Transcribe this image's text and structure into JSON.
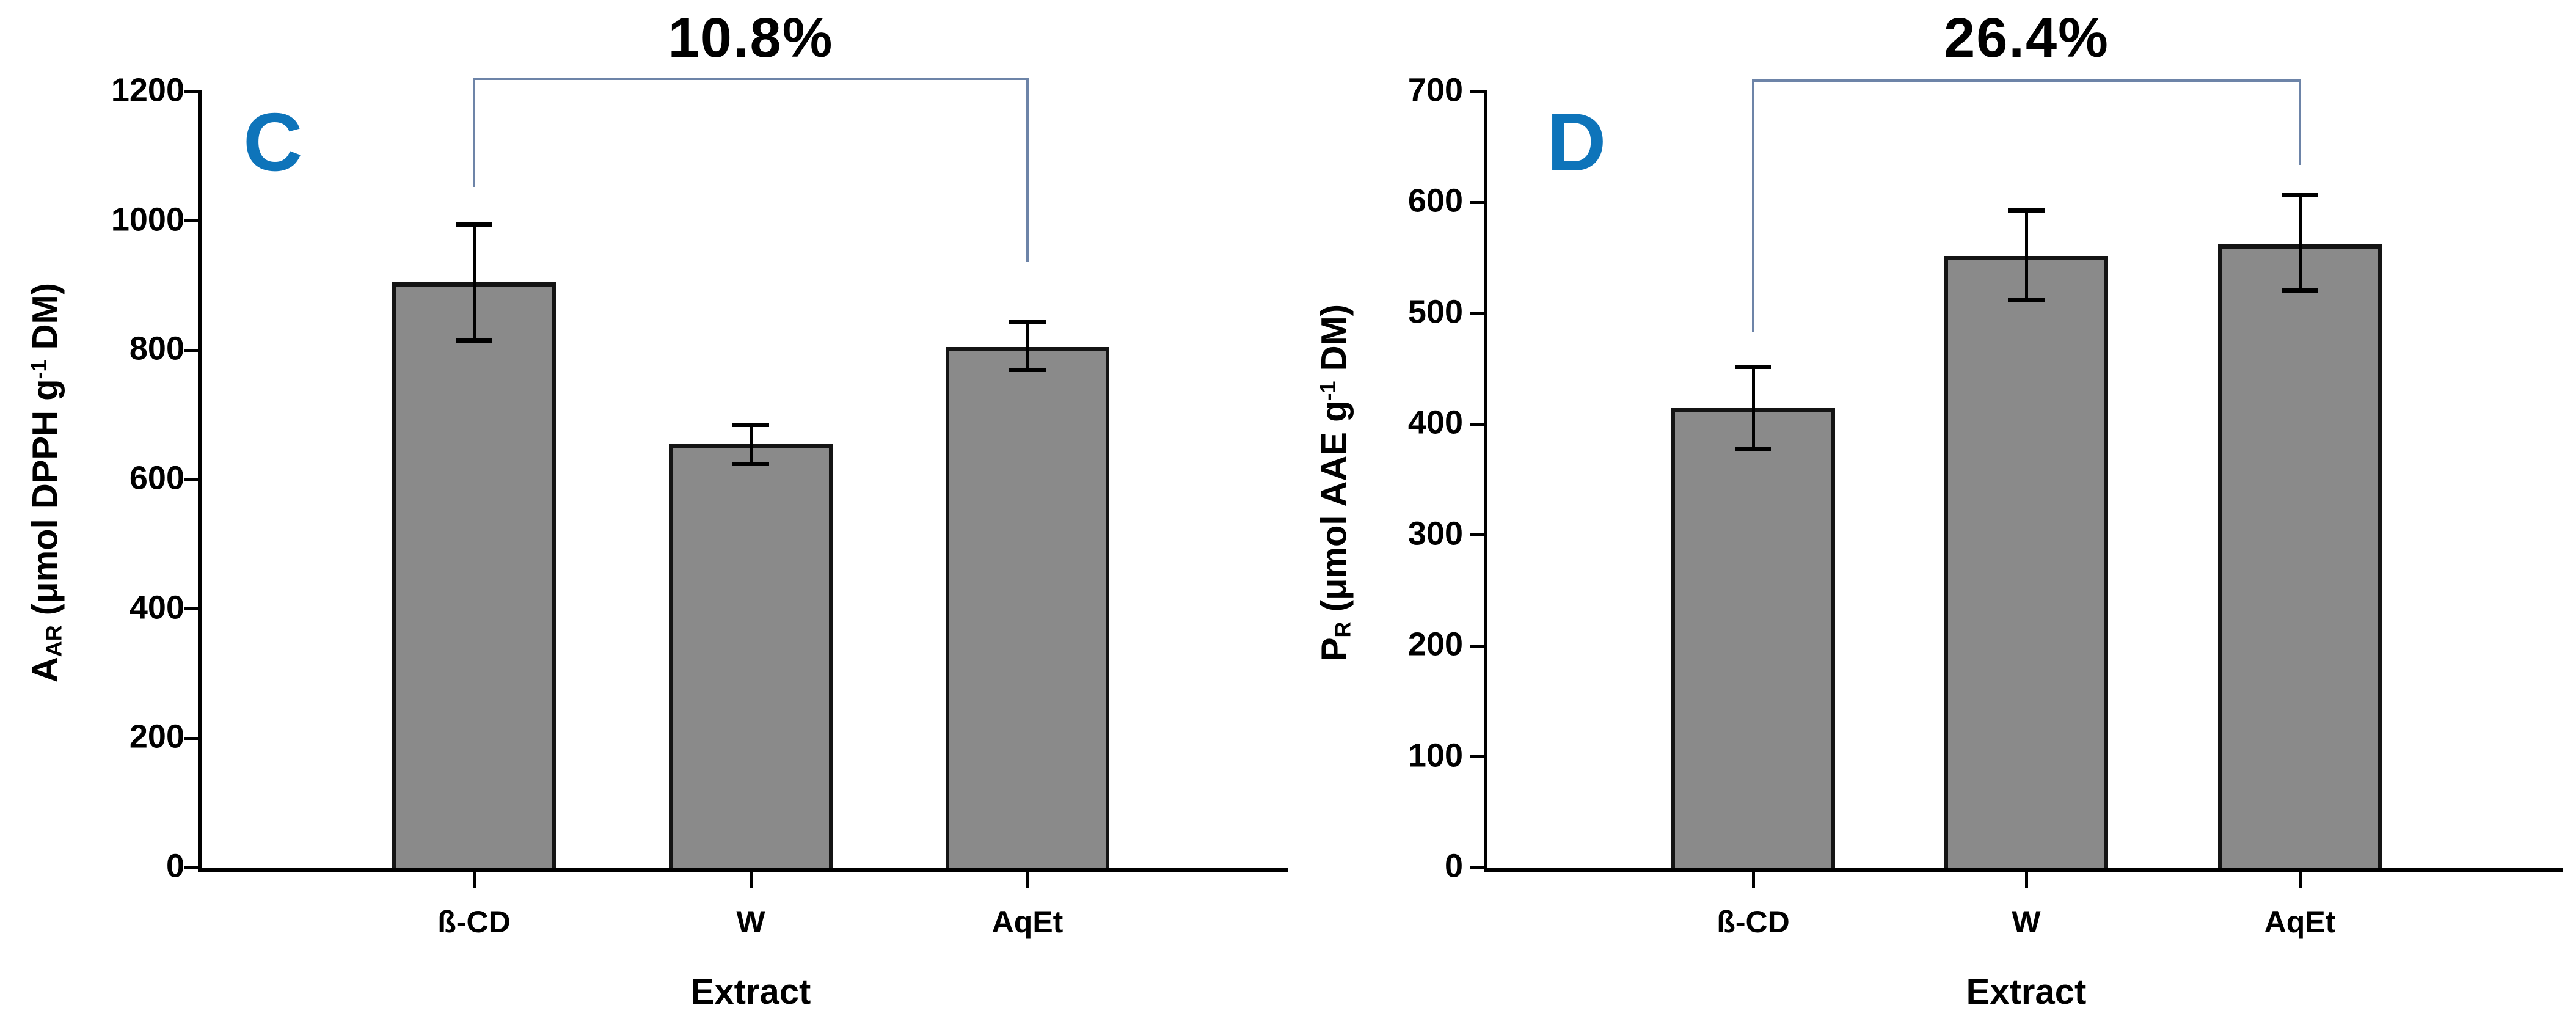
{
  "figure": {
    "background": "#ffffff",
    "colors": {
      "bar_fill": "#8a8a8a",
      "bar_border": "#141414",
      "axis": "#000000",
      "text": "#000000",
      "panel_letter": "#0e74ba",
      "bracket": "#6d84a8"
    }
  },
  "chart_data": [
    {
      "type": "bar",
      "panel_letter": "C",
      "title": "10.8%",
      "xlabel": "Extract",
      "ylabel_parts": {
        "pre": "A",
        "pre_sub": "AR",
        "mid": " (μmol DPPH g",
        "sup": "-1",
        "post": " DM)"
      },
      "ylabel_text": "AAR (μmol DPPH g-1 DM)",
      "categories": [
        "ß-CD",
        "W",
        "AqEt"
      ],
      "values": [
        905,
        655,
        805
      ],
      "err_low": [
        815,
        625,
        770
      ],
      "err_high": [
        995,
        685,
        845
      ],
      "ylim": [
        0,
        1200
      ],
      "ystep": 200,
      "ytick_labels": [
        "0",
        "200",
        "400",
        "600",
        "800",
        "1000",
        "1200"
      ],
      "grid": false,
      "legend": null,
      "bracket": {
        "label": "10.8%",
        "from_category": "ß-CD",
        "to_category": "AqEt",
        "top_value": 1222,
        "drop_from_value": 1053,
        "drop_to_value": 936
      }
    },
    {
      "type": "bar",
      "panel_letter": "D",
      "title": "26.4%",
      "xlabel": "Extract",
      "ylabel_parts": {
        "pre": "P",
        "pre_sub": "R",
        "mid": " (μmol AAE g",
        "sup": "-1",
        "post": " DM)"
      },
      "ylabel_text": "PR (μmol AAE g-1 DM)",
      "categories": [
        "ß-CD",
        "W",
        "AqEt"
      ],
      "values": [
        415,
        552,
        562
      ],
      "err_low": [
        378,
        512,
        521
      ],
      "err_high": [
        452,
        593,
        607
      ],
      "ylim": [
        0,
        700
      ],
      "ystep": 100,
      "ytick_labels": [
        "0",
        "100",
        "200",
        "300",
        "400",
        "500",
        "600",
        "700"
      ],
      "grid": false,
      "legend": null,
      "bracket": {
        "label": "26.4%",
        "from_category": "ß-CD",
        "to_category": "AqEt",
        "top_value": 711,
        "drop_from_value": 483,
        "drop_to_value": 634
      }
    }
  ]
}
